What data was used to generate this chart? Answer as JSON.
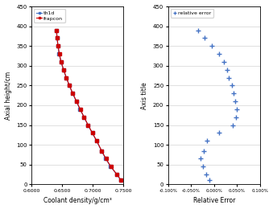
{
  "axial_heights": [
    10,
    25,
    45,
    65,
    85,
    110,
    130,
    150,
    170,
    190,
    210,
    230,
    250,
    270,
    290,
    310,
    330,
    350,
    370,
    390
  ],
  "th1d_density": [
    0.746,
    0.739,
    0.729,
    0.721,
    0.714,
    0.706,
    0.699,
    0.692,
    0.6855,
    0.679,
    0.673,
    0.667,
    0.6615,
    0.6565,
    0.652,
    0.648,
    0.645,
    0.643,
    0.6415,
    0.6405
  ],
  "frapcon_density": [
    0.7462,
    0.7393,
    0.7293,
    0.7213,
    0.7143,
    0.7063,
    0.6993,
    0.6923,
    0.6858,
    0.6793,
    0.6733,
    0.6673,
    0.6618,
    0.6568,
    0.6523,
    0.6483,
    0.6453,
    0.6433,
    0.6418,
    0.6408
  ],
  "error_heights": [
    10,
    25,
    45,
    65,
    85,
    110,
    130,
    150,
    170,
    190,
    210,
    230,
    250,
    270,
    290,
    310,
    330,
    350,
    370,
    390
  ],
  "relative_errors": [
    -0.0001,
    -0.00018,
    -0.00025,
    -0.0003,
    -0.00022,
    -0.00015,
    0.0001,
    0.0004,
    0.00048,
    0.0005,
    0.00045,
    0.00042,
    0.00038,
    0.00032,
    0.00028,
    0.00022,
    0.0001,
    -5e-05,
    -0.0002,
    -0.00035
  ],
  "th1d_color": "#4472C4",
  "frapcon_color": "#CC0000",
  "error_color": "#4472C4",
  "xlabel_left": "Coolant density/g/cm³",
  "xlabel_right": "Relative Error",
  "ylabel_left": "Axial height/cm",
  "ylabel_right": "Axis title",
  "ylim": [
    0,
    450
  ],
  "xlim_left": [
    0.6,
    0.75
  ],
  "xlim_right": [
    -0.001,
    0.001
  ],
  "xticks_left": [
    0.6,
    0.65,
    0.7,
    0.75
  ],
  "xticks_right": [
    -0.001,
    -0.0005,
    0.0,
    0.0005,
    0.001
  ],
  "xtick_labels_right": [
    "-0.100%",
    "-0.050%",
    "0.000%",
    "0.050%",
    "0.100%"
  ],
  "xtick_labels_left": [
    "0.6000",
    "0.6500",
    "0.7000",
    "0.7500"
  ],
  "yticks": [
    0,
    50,
    100,
    150,
    200,
    250,
    300,
    350,
    400,
    450
  ],
  "fig_width": 3.39,
  "fig_height": 2.6,
  "dpi": 100
}
